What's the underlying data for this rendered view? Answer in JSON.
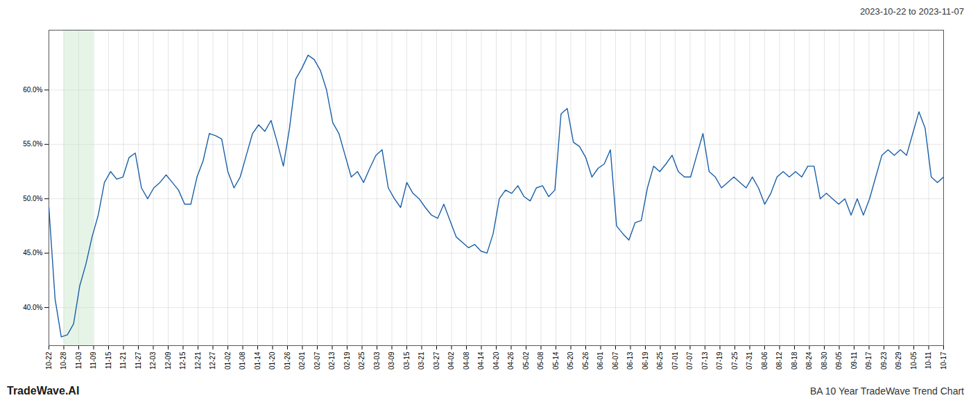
{
  "chart_data": {
    "type": "line",
    "subtitle": "2023-10-22 to 2023-11-07",
    "source": "TradeWave.AI",
    "caption": "BA 10 Year TradeWave Trend Chart",
    "color": "#1a5fa8",
    "grid": true,
    "xlim": [
      0,
      145
    ],
    "xticks": [
      {
        "value": 0,
        "label": "10-22"
      },
      {
        "value": 2.4166666667,
        "label": "10-28"
      },
      {
        "value": 4.8333333333,
        "label": "11-03"
      },
      {
        "value": 7.25,
        "label": "11-09"
      },
      {
        "value": 9.6666666667,
        "label": "11-15"
      },
      {
        "value": 12.0833333333,
        "label": "11-21"
      },
      {
        "value": 14.5,
        "label": "11-27"
      },
      {
        "value": 16.9166666667,
        "label": "12-03"
      },
      {
        "value": 19.3333333333,
        "label": "12-09"
      },
      {
        "value": 21.75,
        "label": "12-15"
      },
      {
        "value": 24.1666666667,
        "label": "12-21"
      },
      {
        "value": 26.5833333333,
        "label": "12-27"
      },
      {
        "value": 29,
        "label": "01-02"
      },
      {
        "value": 31.4166666667,
        "label": "01-08"
      },
      {
        "value": 33.8333333333,
        "label": "01-14"
      },
      {
        "value": 36.25,
        "label": "01-20"
      },
      {
        "value": 38.6666666667,
        "label": "01-26"
      },
      {
        "value": 41.0833333333,
        "label": "02-01"
      },
      {
        "value": 43.5,
        "label": "02-07"
      },
      {
        "value": 45.9166666667,
        "label": "02-13"
      },
      {
        "value": 48.3333333333,
        "label": "02-19"
      },
      {
        "value": 50.75,
        "label": "02-25"
      },
      {
        "value": 53.1666666667,
        "label": "03-03"
      },
      {
        "value": 55.5833333333,
        "label": "03-09"
      },
      {
        "value": 58,
        "label": "03-15"
      },
      {
        "value": 60.4166666667,
        "label": "03-21"
      },
      {
        "value": 62.8333333333,
        "label": "03-27"
      },
      {
        "value": 65.25,
        "label": "04-02"
      },
      {
        "value": 67.6666666667,
        "label": "04-08"
      },
      {
        "value": 70.0833333333,
        "label": "04-14"
      },
      {
        "value": 72.5,
        "label": "04-20"
      },
      {
        "value": 74.9166666667,
        "label": "04-26"
      },
      {
        "value": 77.3333333333,
        "label": "05-02"
      },
      {
        "value": 79.75,
        "label": "05-08"
      },
      {
        "value": 82.1666666667,
        "label": "05-14"
      },
      {
        "value": 84.5833333333,
        "label": "05-20"
      },
      {
        "value": 87,
        "label": "05-26"
      },
      {
        "value": 89.4166666667,
        "label": "06-01"
      },
      {
        "value": 91.8333333333,
        "label": "06-07"
      },
      {
        "value": 94.25,
        "label": "06-13"
      },
      {
        "value": 96.6666666667,
        "label": "06-19"
      },
      {
        "value": 99.0833333333,
        "label": "06-25"
      },
      {
        "value": 101.5,
        "label": "07-01"
      },
      {
        "value": 103.9166666667,
        "label": "07-07"
      },
      {
        "value": 106.3333333333,
        "label": "07-13"
      },
      {
        "value": 108.75,
        "label": "07-19"
      },
      {
        "value": 111.1666666667,
        "label": "07-25"
      },
      {
        "value": 113.5833333333,
        "label": "07-31"
      },
      {
        "value": 116,
        "label": "08-06"
      },
      {
        "value": 118.4166666667,
        "label": "08-12"
      },
      {
        "value": 120.8333333333,
        "label": "08-18"
      },
      {
        "value": 123.25,
        "label": "08-24"
      },
      {
        "value": 125.6666666667,
        "label": "08-30"
      },
      {
        "value": 128.0833333333,
        "label": "09-05"
      },
      {
        "value": 130.5,
        "label": "09-11"
      },
      {
        "value": 132.9166666667,
        "label": "09-17"
      },
      {
        "value": 135.3333333333,
        "label": "09-23"
      },
      {
        "value": 137.75,
        "label": "09-29"
      },
      {
        "value": 140.1666666667,
        "label": "10-05"
      },
      {
        "value": 142.5833333333,
        "label": "10-11"
      },
      {
        "value": 145,
        "label": "10-17"
      }
    ],
    "ylim": [
      36.5,
      65.5
    ],
    "yticks": [
      {
        "value": 40.0,
        "label": "40.0%"
      },
      {
        "value": 45.0,
        "label": "45.0%"
      },
      {
        "value": 50.0,
        "label": "50.0%"
      },
      {
        "value": 55.0,
        "label": "55.0%"
      },
      {
        "value": 60.0,
        "label": "60.0%"
      }
    ],
    "span": {
      "x": [
        2.4166666667,
        7.25
      ],
      "color": "#c8e6c9"
    },
    "values": [
      49.2,
      40.8,
      37.3,
      37.5,
      38.5,
      42.0,
      44.0,
      46.5,
      48.5,
      51.5,
      52.5,
      51.8,
      52.0,
      53.8,
      54.2,
      51.0,
      50.0,
      51.0,
      51.5,
      52.2,
      51.5,
      50.8,
      49.5,
      49.5,
      52.0,
      53.5,
      56.0,
      55.8,
      55.5,
      52.5,
      51.0,
      52.0,
      54.0,
      56.0,
      56.8,
      56.2,
      57.2,
      55.2,
      53.0,
      56.5,
      61.0,
      62.0,
      63.2,
      62.8,
      61.8,
      60.0,
      57.0,
      56.0,
      54.0,
      52.0,
      52.5,
      51.5,
      52.8,
      54.0,
      54.5,
      51.0,
      50.0,
      49.2,
      51.5,
      50.5,
      50.0,
      49.2,
      48.5,
      48.2,
      49.5,
      48.0,
      46.5,
      46.0,
      45.5,
      45.8,
      45.2,
      45.0,
      46.8,
      50.0,
      50.8,
      50.5,
      51.2,
      50.2,
      49.8,
      51.0,
      51.2,
      50.2,
      50.8,
      57.8,
      58.3,
      55.2,
      54.8,
      53.8,
      52.0,
      52.8,
      53.2,
      54.5,
      47.5,
      46.8,
      46.2,
      47.8,
      48.0,
      51.0,
      53.0,
      52.5,
      53.2,
      54.0,
      52.5,
      52.0,
      52.0,
      54.0,
      56.0,
      52.5,
      52.0,
      51.0,
      51.5,
      52.0,
      51.5,
      51.0,
      52.0,
      51.0,
      49.5,
      50.5,
      52.0,
      52.5,
      52.0,
      52.5,
      52.0,
      53.0,
      53.0,
      50.0,
      50.5,
      50.0,
      49.5,
      50.0,
      48.5,
      50.0,
      48.5,
      50.0,
      52.0,
      54.0,
      54.5,
      54.0,
      54.5,
      54.0,
      56.0,
      58.0,
      56.5,
      52.0,
      51.5,
      52.0
    ]
  }
}
